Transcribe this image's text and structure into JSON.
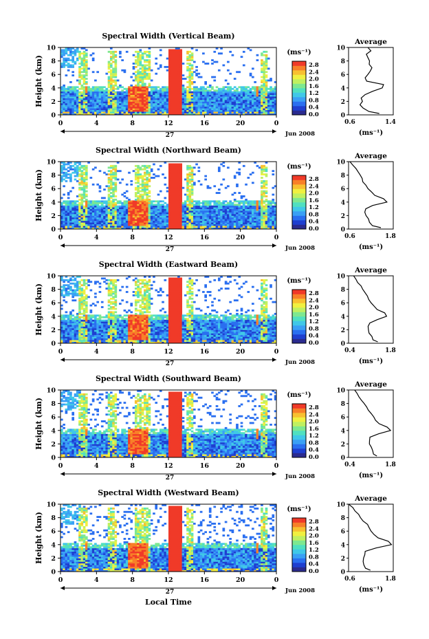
{
  "figure": {
    "xlabel": "Local Time",
    "x_ticks": [
      "0",
      "4",
      "8",
      "12",
      "16",
      "20",
      "0"
    ],
    "date_day": "27",
    "date_month": "Jun 2008",
    "y_label": "Height (km)",
    "y_ticks": [
      "0",
      "2",
      "4",
      "6",
      "8",
      "10"
    ],
    "colorbar_unit": "(ms⁻¹)",
    "colorbar_ticks": [
      "0.0",
      "0.4",
      "0.8",
      "1.2",
      "1.6",
      "2.0",
      "2.4",
      "2.8"
    ],
    "avg_title": "Average",
    "avg_unit": "(ms⁻¹)",
    "colormap": [
      "#2b2b8f",
      "#1f3fd0",
      "#2a6ff0",
      "#3aa0f5",
      "#40c8e8",
      "#50e0c0",
      "#7ee890",
      "#c0f060",
      "#f0f040",
      "#f8c030",
      "#f88028",
      "#f03a28"
    ]
  },
  "chart_data": [
    {
      "type": "heatmap",
      "title": "Spectral Width (Vertical Beam)",
      "xlabel": "Local Time",
      "ylabel": "Height (km)",
      "xlim": [
        0,
        24
      ],
      "ylim": [
        0,
        10
      ],
      "clim": [
        0.0,
        2.8
      ],
      "profile": {
        "title": "Average",
        "xlim": [
          0.6,
          1.4
        ],
        "x_ticks": [
          "0.6",
          "1.4"
        ],
        "ylim": [
          0,
          10
        ],
        "height": [
          0.2,
          0.5,
          1.0,
          1.5,
          2.0,
          2.5,
          3.0,
          3.5,
          4.0,
          4.5,
          5.0,
          5.5,
          6.0,
          6.5,
          7.0,
          7.5,
          8.0,
          8.5,
          9.0,
          9.5,
          10.0
        ],
        "width": [
          1.15,
          0.98,
          0.86,
          0.82,
          0.83,
          0.84,
          0.9,
          1.02,
          1.2,
          1.22,
          0.92,
          0.88,
          0.96,
          1.0,
          1.03,
          0.97,
          0.96,
          0.93,
          0.91,
          1.0,
          0.94
        ]
      }
    },
    {
      "type": "heatmap",
      "title": "Spectral Width (Northward Beam)",
      "xlabel": "Local Time",
      "ylabel": "Height (km)",
      "xlim": [
        0,
        24
      ],
      "ylim": [
        0,
        10
      ],
      "clim": [
        0.0,
        2.8
      ],
      "profile": {
        "title": "Average",
        "xlim": [
          0.6,
          1.8
        ],
        "x_ticks": [
          "0.6",
          "1.8"
        ],
        "ylim": [
          0,
          10
        ],
        "height": [
          0.2,
          0.5,
          1.0,
          1.5,
          2.0,
          2.5,
          3.0,
          3.5,
          4.0,
          4.5,
          5.0,
          5.5,
          6.0,
          6.5,
          7.0,
          7.5,
          8.0,
          8.5,
          9.0,
          9.5,
          10.0
        ],
        "width": [
          1.45,
          1.25,
          1.18,
          1.12,
          1.05,
          1.03,
          1.05,
          1.25,
          1.62,
          1.55,
          1.3,
          1.2,
          1.12,
          1.05,
          1.0,
          0.95,
          0.9,
          0.85,
          0.8,
          0.72,
          0.65
        ]
      }
    },
    {
      "type": "heatmap",
      "title": "Spectral Width (Eastward Beam)",
      "xlabel": "Local Time",
      "ylabel": "Height (km)",
      "xlim": [
        0,
        24
      ],
      "ylim": [
        0,
        10
      ],
      "clim": [
        0.0,
        2.8
      ],
      "profile": {
        "title": "Average",
        "xlim": [
          0.4,
          1.8
        ],
        "x_ticks": [
          "0.4",
          "1.8"
        ],
        "ylim": [
          0,
          10
        ],
        "height": [
          0.2,
          0.5,
          1.0,
          1.5,
          2.0,
          2.5,
          3.0,
          3.5,
          4.0,
          4.5,
          5.0,
          5.5,
          6.0,
          6.5,
          7.0,
          7.5,
          8.0,
          8.5,
          9.0,
          9.5,
          10.0
        ],
        "width": [
          1.3,
          1.15,
          1.12,
          1.05,
          1.02,
          1.03,
          1.05,
          1.3,
          1.6,
          1.55,
          1.3,
          1.2,
          1.12,
          1.05,
          0.98,
          0.9,
          0.85,
          0.78,
          0.7,
          0.62,
          0.55
        ]
      }
    },
    {
      "type": "heatmap",
      "title": "Spectral Width (Southward Beam)",
      "xlabel": "Local Time",
      "ylabel": "Height (km)",
      "xlim": [
        0,
        24
      ],
      "ylim": [
        0,
        10
      ],
      "clim": [
        0.0,
        2.8
      ],
      "profile": {
        "title": "Average",
        "xlim": [
          0.4,
          1.8
        ],
        "x_ticks": [
          "0.4",
          "1.8"
        ],
        "ylim": [
          0,
          10
        ],
        "height": [
          0.2,
          0.5,
          1.0,
          1.5,
          2.0,
          2.5,
          3.0,
          3.5,
          4.0,
          4.5,
          5.0,
          5.5,
          6.0,
          6.5,
          7.0,
          7.5,
          8.0,
          8.5,
          9.0,
          9.5,
          10.0
        ],
        "width": [
          1.3,
          1.2,
          1.15,
          1.1,
          1.06,
          1.05,
          1.08,
          1.35,
          1.7,
          1.6,
          1.35,
          1.25,
          1.18,
          1.1,
          1.02,
          0.95,
          0.88,
          0.8,
          0.72,
          0.65,
          0.58
        ]
      }
    },
    {
      "type": "heatmap",
      "title": "Spectral Width (Westward Beam)",
      "xlabel": "Local Time",
      "ylabel": "Height (km)",
      "xlim": [
        0,
        24
      ],
      "ylim": [
        0,
        10
      ],
      "clim": [
        0.0,
        2.8
      ],
      "profile": {
        "title": "Average",
        "xlim": [
          0.6,
          1.8
        ],
        "x_ticks": [
          "0.6",
          "1.8"
        ],
        "ylim": [
          0,
          10
        ],
        "height": [
          0.2,
          0.5,
          1.0,
          1.5,
          2.0,
          2.5,
          3.0,
          3.5,
          4.0,
          4.5,
          5.0,
          5.5,
          6.0,
          6.5,
          7.0,
          7.5,
          8.0,
          8.5,
          9.0,
          9.5,
          10.0
        ],
        "width": [
          1.2,
          1.05,
          1.02,
          1.0,
          1.0,
          1.02,
          1.05,
          1.35,
          1.75,
          1.65,
          1.4,
          1.3,
          1.2,
          1.15,
          1.1,
          1.0,
          0.92,
          0.85,
          0.78,
          0.7,
          0.62
        ]
      }
    }
  ]
}
